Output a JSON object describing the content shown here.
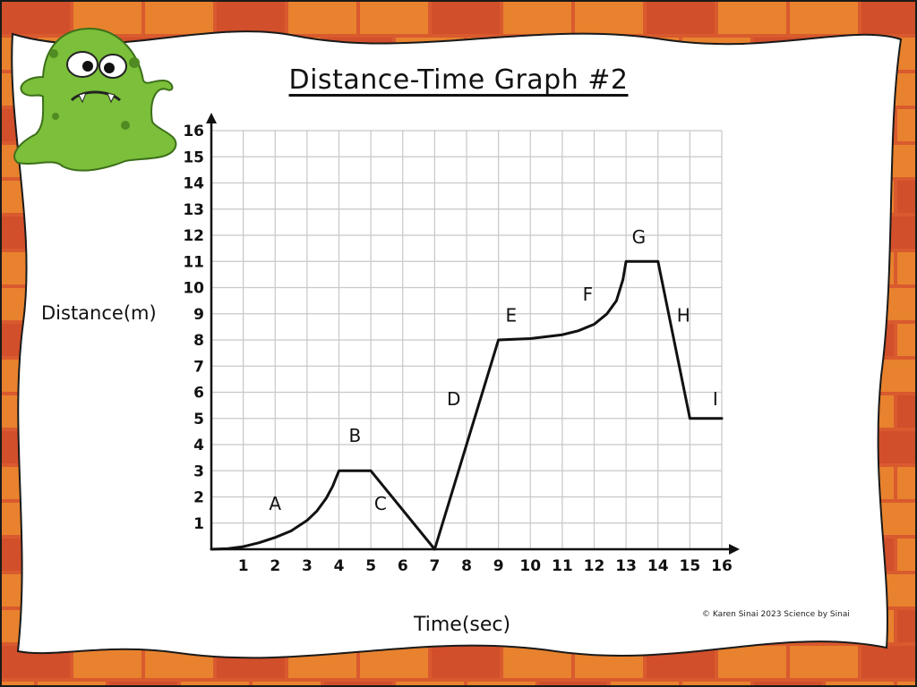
{
  "colors": {
    "brick_light": "#e8822e",
    "brick_dark": "#d14f2a",
    "mortar": "#1a1a1a",
    "card": "#ffffff",
    "grid": "#c8c8c8",
    "line": "#111111",
    "monster": "#7bbf3a",
    "monster_shadow": "#4f8a22"
  },
  "credit": "© Karen Sinai 2023 Science by Sinai",
  "monster_icon": "green-slime-monster-icon",
  "chart_data": {
    "type": "line",
    "title": "Distance-Time Graph #2",
    "xlabel": "Time(sec)",
    "ylabel": "Distance(m)",
    "xlim": [
      0,
      16
    ],
    "ylim": [
      0,
      16
    ],
    "xticks": [
      "1",
      "2",
      "3",
      "4",
      "5",
      "6",
      "7",
      "8",
      "9",
      "10",
      "11",
      "12",
      "13",
      "14",
      "15",
      "16"
    ],
    "yticks": [
      "1",
      "2",
      "3",
      "4",
      "5",
      "6",
      "7",
      "8",
      "9",
      "10",
      "11",
      "12",
      "13",
      "14",
      "15",
      "16"
    ],
    "grid": true,
    "series": [
      {
        "x": [
          0,
          0.5,
          1,
          1.5,
          2,
          2.5,
          3,
          3.3,
          3.6,
          3.8,
          4,
          5,
          7,
          9,
          10,
          11,
          11.5,
          12,
          12.4,
          12.7,
          12.9,
          13,
          14,
          15,
          16
        ],
        "y": [
          0,
          0.02,
          0.1,
          0.25,
          0.45,
          0.7,
          1.1,
          1.45,
          1.95,
          2.4,
          3,
          3,
          0,
          8,
          8.05,
          8.2,
          8.35,
          8.6,
          9,
          9.5,
          10.3,
          11,
          11,
          5,
          5
        ]
      }
    ],
    "annotations": [
      {
        "text": "A",
        "x": 2,
        "y": 1.5
      },
      {
        "text": "B",
        "x": 4.5,
        "y": 4.1
      },
      {
        "text": "C",
        "x": 5.3,
        "y": 1.5
      },
      {
        "text": "D",
        "x": 7.6,
        "y": 5.5
      },
      {
        "text": "E",
        "x": 9.4,
        "y": 8.7
      },
      {
        "text": "F",
        "x": 11.8,
        "y": 9.5
      },
      {
        "text": "G",
        "x": 13.4,
        "y": 11.7
      },
      {
        "text": "H",
        "x": 14.8,
        "y": 8.7
      },
      {
        "text": "I",
        "x": 15.8,
        "y": 5.5
      }
    ]
  }
}
